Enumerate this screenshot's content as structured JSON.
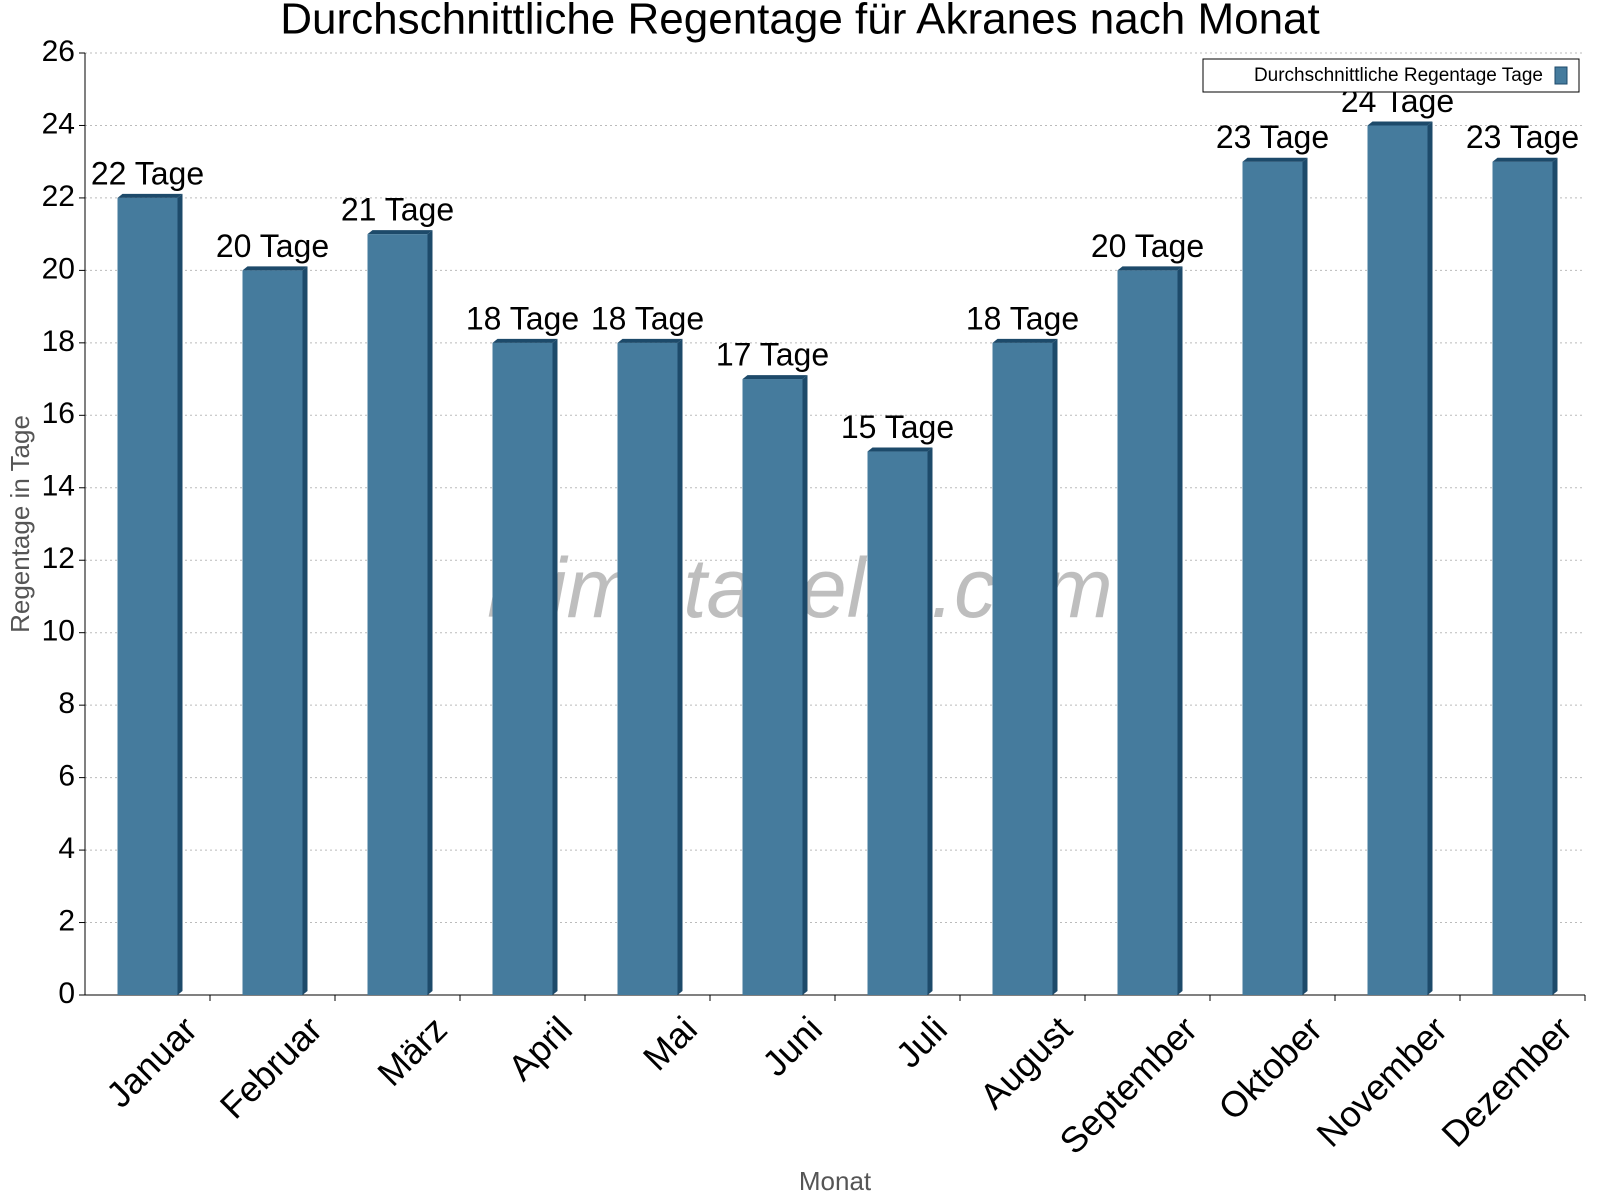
{
  "chart_data": {
    "type": "bar",
    "title": "Durchschnittliche Regentage für Akranes nach Monat",
    "x_label": "Monat",
    "y_label": "Regentage in Tage",
    "watermark": "klimatabelle.com",
    "categories": [
      "Januar",
      "Februar",
      "März",
      "April",
      "Mai",
      "Juni",
      "Juli",
      "August",
      "September",
      "Oktober",
      "November",
      "Dezember"
    ],
    "series": [
      {
        "name": "Durchschnittliche Regentage Tage",
        "color": "#457b9d",
        "values": [
          22,
          20,
          21,
          18,
          18,
          17,
          15,
          18,
          20,
          23,
          24,
          23
        ],
        "value_labels": [
          "22 Tage",
          "20 Tage",
          "21 Tage",
          "18 Tage",
          "18 Tage",
          "17 Tage",
          "15 Tage",
          "18 Tage",
          "20 Tage",
          "23 Tage",
          "24 Tage",
          "23 Tage"
        ]
      }
    ],
    "ylim": [
      0,
      26
    ],
    "yticks": [
      0,
      2,
      4,
      6,
      8,
      10,
      12,
      14,
      16,
      18,
      20,
      22,
      24,
      26
    ],
    "grid": true,
    "legend": "top-right"
  }
}
